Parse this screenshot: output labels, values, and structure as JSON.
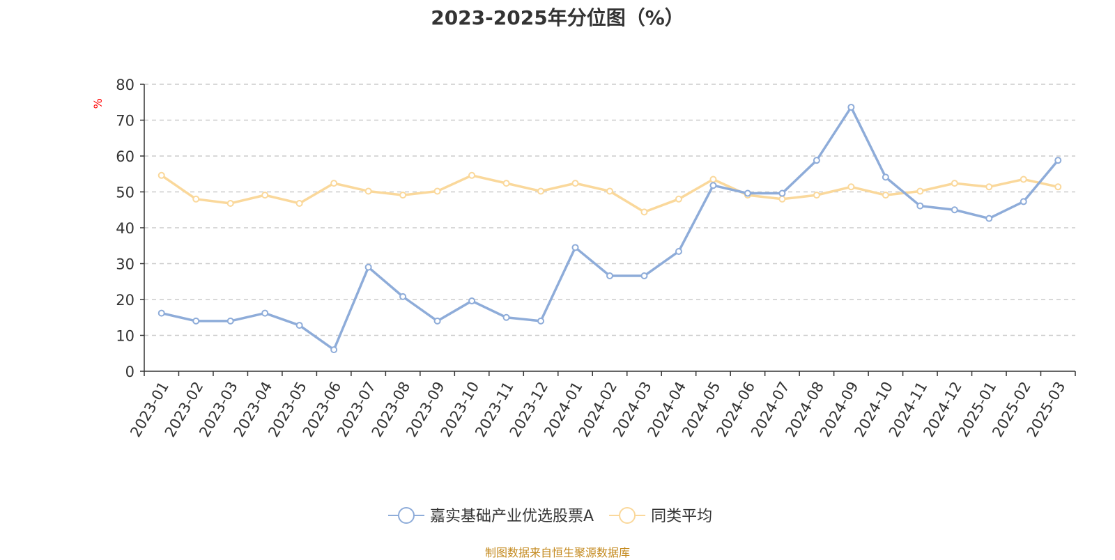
{
  "title": "2023-2025年分位图（%）",
  "source_note": "制图数据来自恒生聚源数据库",
  "chart_data": {
    "type": "line",
    "title": "2023-2025年分位图（%）",
    "ylabel": "%",
    "xlabel": "",
    "ylim": [
      0,
      80
    ],
    "yticks": [
      0,
      10,
      20,
      30,
      40,
      50,
      60,
      70,
      80
    ],
    "grid": true,
    "legend_position": "bottom",
    "categories": [
      "2023-01",
      "2023-02",
      "2023-03",
      "2023-04",
      "2023-05",
      "2023-06",
      "2023-07",
      "2023-08",
      "2023-09",
      "2023-10",
      "2023-11",
      "2023-12",
      "2024-01",
      "2024-02",
      "2024-03",
      "2024-04",
      "2024-05",
      "2024-06",
      "2024-07",
      "2024-08",
      "2024-09",
      "2024-10",
      "2024-11",
      "2024-12",
      "2025-01",
      "2025-02",
      "2025-03"
    ],
    "series": [
      {
        "name": "嘉实基础产业优选股票A",
        "color": "#8eacd9",
        "values": [
          16.2,
          14.0,
          14.0,
          16.2,
          12.8,
          6.0,
          29.0,
          20.8,
          14.0,
          19.6,
          15.0,
          14.0,
          34.5,
          26.6,
          26.6,
          33.4,
          51.8,
          49.6,
          49.6,
          58.8,
          73.6,
          54.1,
          46.1,
          45.0,
          42.6,
          47.3,
          58.8
        ]
      },
      {
        "name": "同类平均",
        "color": "#fad89b",
        "values": [
          54.6,
          48.0,
          46.8,
          49.1,
          46.8,
          52.4,
          50.2,
          49.1,
          50.2,
          54.6,
          52.4,
          50.2,
          52.4,
          50.2,
          44.4,
          48.0,
          53.5,
          49.1,
          48.0,
          49.1,
          51.4,
          49.1,
          50.2,
          52.4,
          51.4,
          53.5,
          51.4
        ]
      }
    ]
  }
}
